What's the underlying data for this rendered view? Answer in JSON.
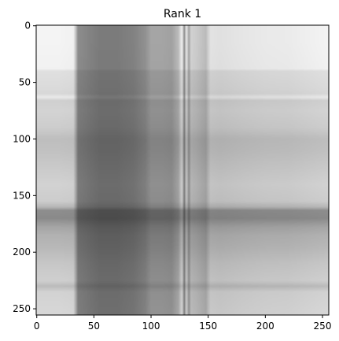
{
  "chart_data": {
    "type": "heatmap",
    "title": "Rank 1",
    "xlabel": "",
    "ylabel": "",
    "colormap": "gray",
    "image_shape": [
      256,
      256
    ],
    "xlim": [
      -0.5,
      255.5
    ],
    "ylim": [
      255.5,
      -0.5
    ],
    "x_ticks": [
      0,
      50,
      100,
      150,
      200,
      250
    ],
    "y_ticks": [
      0,
      50,
      100,
      150,
      200,
      250
    ],
    "x_tick_labels": [
      "0",
      "50",
      "100",
      "150",
      "200",
      "250"
    ],
    "y_tick_labels": [
      "0",
      "50",
      "100",
      "150",
      "200",
      "250"
    ],
    "grid": false,
    "column_profile": {
      "x": [
        0,
        20,
        32,
        36,
        45,
        55,
        70,
        85,
        95,
        100,
        110,
        118,
        124,
        127,
        129,
        131,
        133,
        135,
        140,
        148,
        152,
        160,
        180,
        200,
        220,
        240,
        255
      ],
      "value": [
        0.95,
        0.95,
        0.93,
        0.3,
        0.26,
        0.22,
        0.22,
        0.25,
        0.32,
        0.42,
        0.42,
        0.4,
        0.55,
        0.92,
        0.3,
        0.85,
        0.4,
        0.7,
        0.65,
        0.55,
        0.82,
        0.8,
        0.84,
        0.87,
        0.88,
        0.92,
        0.95
      ]
    },
    "row_profile": {
      "y": [
        0,
        15,
        38,
        40,
        55,
        60,
        63,
        66,
        75,
        90,
        100,
        110,
        120,
        140,
        155,
        160,
        163,
        170,
        178,
        185,
        195,
        210,
        225,
        230,
        235,
        245,
        255
      ],
      "value": [
        1.0,
        1.0,
        0.98,
        0.84,
        0.8,
        0.78,
        0.92,
        0.72,
        0.75,
        0.7,
        0.6,
        0.62,
        0.66,
        0.74,
        0.7,
        0.55,
        0.32,
        0.3,
        0.45,
        0.52,
        0.56,
        0.66,
        0.72,
        0.58,
        0.74,
        0.76,
        0.78
      ]
    }
  }
}
